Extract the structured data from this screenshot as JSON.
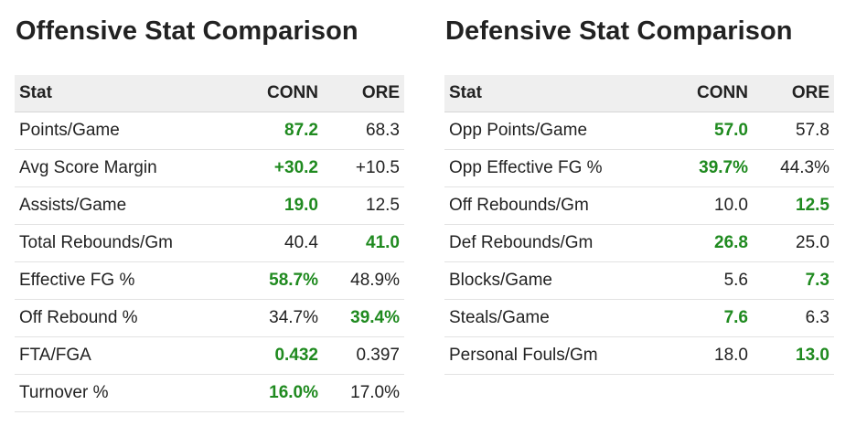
{
  "offensive": {
    "title": "Offensive Stat Comparison",
    "headers": {
      "stat": "Stat",
      "conn": "CONN",
      "ore": "ORE"
    },
    "rows": [
      {
        "stat": "Points/Game",
        "conn": "87.2",
        "ore": "68.3",
        "leader": "conn"
      },
      {
        "stat": "Avg Score Margin",
        "conn": "+30.2",
        "ore": "+10.5",
        "leader": "conn"
      },
      {
        "stat": "Assists/Game",
        "conn": "19.0",
        "ore": "12.5",
        "leader": "conn"
      },
      {
        "stat": "Total Rebounds/Gm",
        "conn": "40.4",
        "ore": "41.0",
        "leader": "ore"
      },
      {
        "stat": "Effective FG %",
        "conn": "58.7%",
        "ore": "48.9%",
        "leader": "conn"
      },
      {
        "stat": "Off Rebound %",
        "conn": "34.7%",
        "ore": "39.4%",
        "leader": "ore"
      },
      {
        "stat": "FTA/FGA",
        "conn": "0.432",
        "ore": "0.397",
        "leader": "conn"
      },
      {
        "stat": "Turnover %",
        "conn": "16.0%",
        "ore": "17.0%",
        "leader": "conn"
      }
    ]
  },
  "defensive": {
    "title": "Defensive Stat Comparison",
    "headers": {
      "stat": "Stat",
      "conn": "CONN",
      "ore": "ORE"
    },
    "rows": [
      {
        "stat": "Opp Points/Game",
        "conn": "57.0",
        "ore": "57.8",
        "leader": "conn"
      },
      {
        "stat": "Opp Effective FG %",
        "conn": "39.7%",
        "ore": "44.3%",
        "leader": "conn"
      },
      {
        "stat": "Off Rebounds/Gm",
        "conn": "10.0",
        "ore": "12.5",
        "leader": "ore"
      },
      {
        "stat": "Def Rebounds/Gm",
        "conn": "26.8",
        "ore": "25.0",
        "leader": "conn"
      },
      {
        "stat": "Blocks/Game",
        "conn": "5.6",
        "ore": "7.3",
        "leader": "ore"
      },
      {
        "stat": "Steals/Game",
        "conn": "7.6",
        "ore": "6.3",
        "leader": "conn"
      },
      {
        "stat": "Personal Fouls/Gm",
        "conn": "18.0",
        "ore": "13.0",
        "leader": "ore"
      }
    ]
  },
  "colors": {
    "leader": "#1f8a1f",
    "header_bg": "#efefef"
  }
}
